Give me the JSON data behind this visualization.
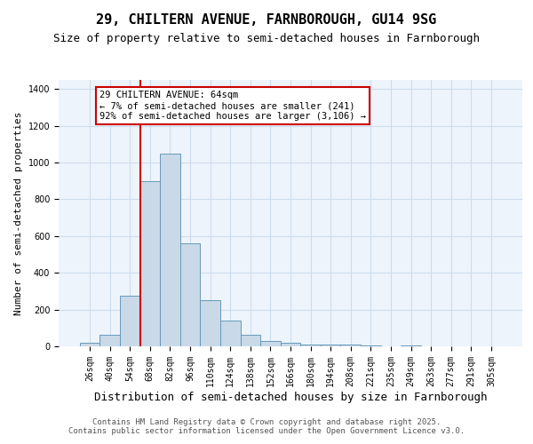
{
  "title1": "29, CHILTERN AVENUE, FARNBOROUGH, GU14 9SG",
  "title2": "Size of property relative to semi-detached houses in Farnborough",
  "xlabel": "Distribution of semi-detached houses by size in Farnborough",
  "ylabel": "Number of semi-detached properties",
  "bar_labels": [
    "26sqm",
    "40sqm",
    "54sqm",
    "68sqm",
    "82sqm",
    "96sqm",
    "110sqm",
    "124sqm",
    "138sqm",
    "152sqm",
    "166sqm",
    "180sqm",
    "194sqm",
    "208sqm",
    "221sqm",
    "235sqm",
    "249sqm",
    "263sqm",
    "277sqm",
    "291sqm",
    "305sqm"
  ],
  "bar_values": [
    20,
    65,
    275,
    900,
    1050,
    560,
    250,
    140,
    65,
    30,
    20,
    10,
    10,
    10,
    5,
    0,
    5,
    0,
    0,
    0,
    0
  ],
  "bar_color": "#c9d9e8",
  "bar_edge_color": "#6699bb",
  "grid_color": "#ccddee",
  "bg_color": "#eef4fb",
  "red_line_x": 2.5,
  "red_line_color": "#cc0000",
  "annotation_text": "29 CHILTERN AVENUE: 64sqm\n← 7% of semi-detached houses are smaller (241)\n92% of semi-detached houses are larger (3,106) →",
  "ylim": [
    0,
    1450
  ],
  "footnote": "Contains HM Land Registry data © Crown copyright and database right 2025.\nContains public sector information licensed under the Open Government Licence v3.0.",
  "title1_fontsize": 11,
  "title2_fontsize": 9,
  "xlabel_fontsize": 9,
  "ylabel_fontsize": 8,
  "tick_fontsize": 7,
  "annotation_fontsize": 7.5,
  "footnote_fontsize": 6.5
}
